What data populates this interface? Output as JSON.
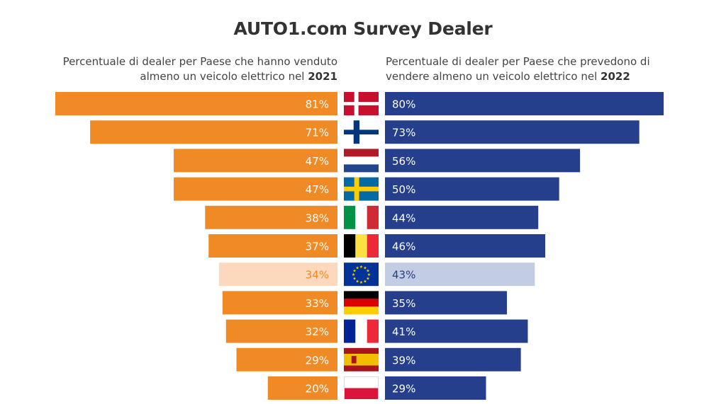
{
  "chart_data": {
    "type": "bar",
    "title": "AUTO1.com Survey Dealer",
    "categories": [
      "Danimarca",
      "Finlandia",
      "Paesi Bassi",
      "Svezia",
      "Italia",
      "Belgio",
      "Unione Europea",
      "Germania",
      "Francia",
      "Spagna",
      "Polonia"
    ],
    "flags": [
      "flag-denmark",
      "flag-finland",
      "flag-netherlands",
      "flag-sweden",
      "flag-italy",
      "flag-belgium",
      "flag-eu",
      "flag-germany",
      "flag-france",
      "flag-spain",
      "flag-poland"
    ],
    "highlight_index": 6,
    "series": [
      {
        "subtitle_prefix": "Percentuale di dealer per Paese che hanno venduto almeno un veicolo elettrico nel",
        "subtitle_year": "2021",
        "color": "#F08A24",
        "highlight_color": "#FCD9BC",
        "highlight_text_color": "#F08A24",
        "values": [
          81,
          71,
          47,
          47,
          38,
          37,
          34,
          33,
          32,
          29,
          20
        ],
        "labels": [
          "81%",
          "71%",
          "47%",
          "47%",
          "38%",
          "37%",
          "34%",
          "33%",
          "32%",
          "29%",
          "20%"
        ]
      },
      {
        "subtitle_prefix": "Percentuale di dealer per Paese che prevedono di vendere almeno un veicolo elettrico nel",
        "subtitle_year": "2022",
        "color": "#263F8C",
        "highlight_color": "#C2CCE3",
        "highlight_text_color": "#263F8C",
        "values": [
          80,
          73,
          56,
          50,
          44,
          46,
          43,
          35,
          41,
          39,
          29
        ],
        "labels": [
          "80%",
          "73%",
          "56%",
          "50%",
          "44%",
          "46%",
          "43%",
          "35%",
          "41%",
          "39%",
          "29%"
        ]
      }
    ],
    "xlim": [
      0,
      81
    ]
  }
}
